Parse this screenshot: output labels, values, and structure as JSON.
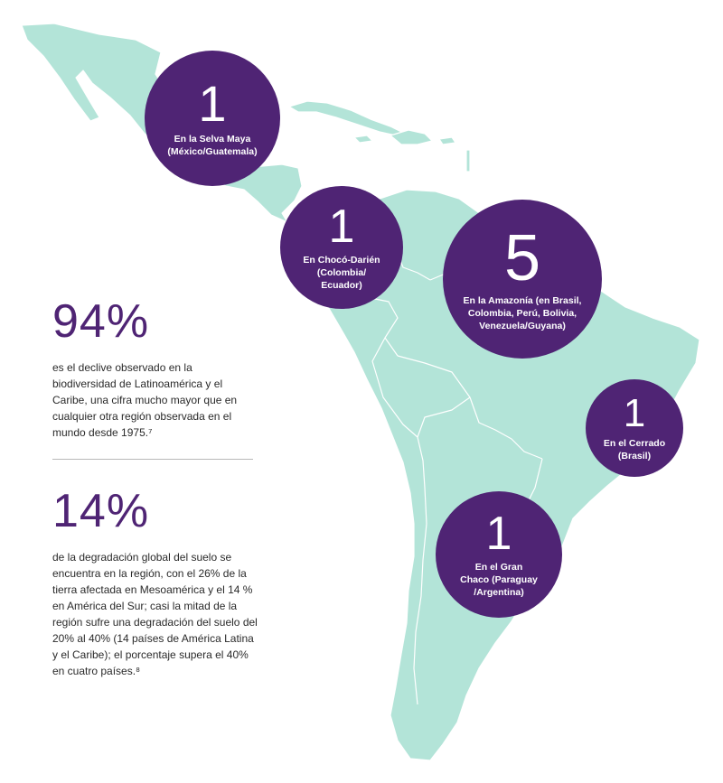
{
  "circles": [
    {
      "id": "maya",
      "number": "1",
      "caption": "En la Selva Maya\n(México/Guatemala)"
    },
    {
      "id": "choco",
      "number": "1",
      "caption": "En Chocó-Darién\n(Colombia/\nEcuador)"
    },
    {
      "id": "amaz",
      "number": "5",
      "caption": "En la Amazonía (en Brasil,\nColombia, Perú, Bolivia,\nVenezuela/Guyana)"
    },
    {
      "id": "cerr",
      "number": "1",
      "caption": "En el Cerrado\n(Brasil)"
    },
    {
      "id": "chaco",
      "number": "1",
      "caption": "En el Gran\nChaco (Paraguay\n/Argentina)"
    }
  ],
  "stats": [
    {
      "value": "94%",
      "text": "es el declive observado en la biodiversidad de Latinoamérica y el Caribe, una cifra mucho mayor que en cualquier otra región observada en el mundo desde 1975.⁷"
    },
    {
      "value": "14%",
      "text": "de la degradación global del suelo se encuentra en la región, con el 26% de la tierra afectada en Mesoamérica y el 14 % en América del Sur; casi la mitad de la región sufre una degradación del suelo del 20% al 40% (14 países de América Latina y el Caribe); el porcentaje supera el 40% en cuatro países.⁸"
    }
  ],
  "colors": {
    "land": "#b3e4d8",
    "accent": "#4f2474"
  }
}
